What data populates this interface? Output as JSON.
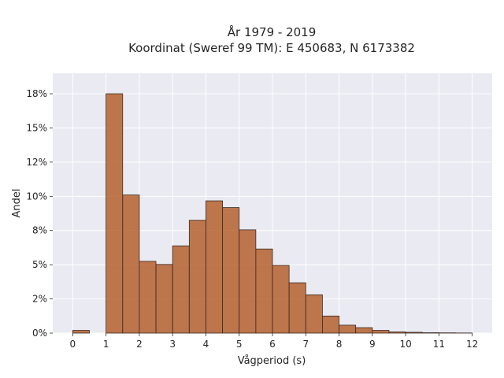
{
  "chart_data": {
    "type": "bar",
    "title_lines": [
      "År 1979 - 2019",
      "Koordinat (Sweref 99 TM): E 450683, N 6173382"
    ],
    "xlabel": "Vågperiod (s)",
    "ylabel": "Andel",
    "xlim": [
      -0.6,
      12.6
    ],
    "ylim": [
      0,
      0.19
    ],
    "x_ticks": [
      0,
      1,
      2,
      3,
      4,
      5,
      6,
      7,
      8,
      9,
      10,
      11,
      12
    ],
    "x_tick_labels": [
      "0",
      "1",
      "2",
      "3",
      "4",
      "5",
      "6",
      "7",
      "8",
      "9",
      "10",
      "11",
      "12"
    ],
    "y_ticks": [
      0,
      0.025,
      0.05,
      0.075,
      0.1,
      0.125,
      0.15,
      0.175
    ],
    "y_tick_labels": [
      "0%",
      "2%",
      "5%",
      "8%",
      "10%",
      "12%",
      "15%",
      "18%"
    ],
    "bin_width": 0.5,
    "bins": [
      {
        "x": 0.0,
        "value": 0.002
      },
      {
        "x": 1.0,
        "value": 0.175
      },
      {
        "x": 1.5,
        "value": 0.101
      },
      {
        "x": 2.0,
        "value": 0.0525
      },
      {
        "x": 2.5,
        "value": 0.0502
      },
      {
        "x": 3.0,
        "value": 0.0638
      },
      {
        "x": 3.5,
        "value": 0.0825
      },
      {
        "x": 4.0,
        "value": 0.0967
      },
      {
        "x": 4.5,
        "value": 0.0918
      },
      {
        "x": 5.0,
        "value": 0.0755
      },
      {
        "x": 5.5,
        "value": 0.0615
      },
      {
        "x": 6.0,
        "value": 0.0495
      },
      {
        "x": 6.5,
        "value": 0.0368
      },
      {
        "x": 7.0,
        "value": 0.028
      },
      {
        "x": 7.5,
        "value": 0.0125
      },
      {
        "x": 8.0,
        "value": 0.0058
      },
      {
        "x": 8.5,
        "value": 0.004
      },
      {
        "x": 9.0,
        "value": 0.002
      },
      {
        "x": 9.5,
        "value": 0.0009
      },
      {
        "x": 10.0,
        "value": 0.0006
      },
      {
        "x": 10.5,
        "value": 0.0003
      },
      {
        "x": 11.0,
        "value": 0.0002
      },
      {
        "x": 11.5,
        "value": 0.0001
      }
    ],
    "colors": {
      "bar": "#b5602f",
      "plot_bg": "#eaeaf2",
      "grid": "#ffffff"
    },
    "grid": true,
    "legend": "none"
  }
}
